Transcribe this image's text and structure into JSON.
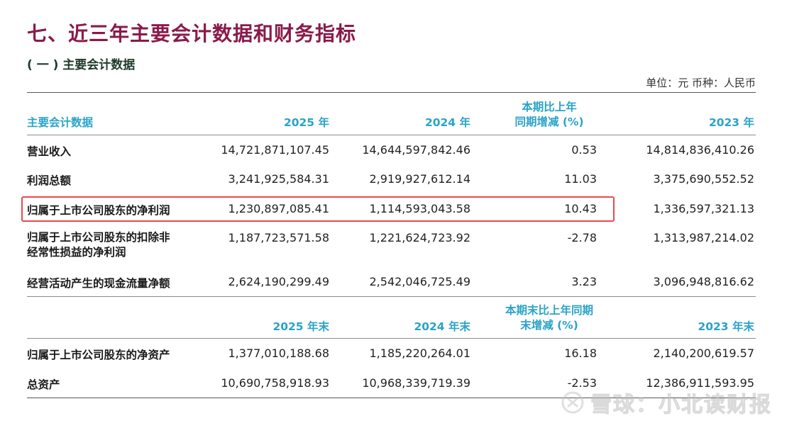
{
  "title": "七、近三年主要会计数据和财务指标",
  "subtitle": "( 一 ) 主要会计数据",
  "unit_note": "单位：元  币种：人民币",
  "table1": {
    "headers": {
      "label": "主要会计数据",
      "y2025": "2025 年",
      "y2024": "2024 年",
      "change_line1": "本期比上年",
      "change_line2": "同期增减 (%)",
      "y2023": "2023 年"
    },
    "rows": [
      {
        "label": "营业收入",
        "y2025": "14,721,871,107.45",
        "y2024": "14,644,597,842.46",
        "change": "0.53",
        "y2023": "14,814,836,410.26"
      },
      {
        "label": "利润总额",
        "y2025": "3,241,925,584.31",
        "y2024": "2,919,927,612.14",
        "change": "11.03",
        "y2023": "3,375,690,552.52"
      },
      {
        "label": "归属于上市公司股东的净利润",
        "y2025": "1,230,897,085.41",
        "y2024": "1,114,593,043.58",
        "change": "10.43",
        "y2023": "1,336,597,321.13"
      },
      {
        "label_line1": "归属于上市公司股东的扣除非",
        "label_line2": "经常性损益的净利润",
        "y2025": "1,187,723,571.58",
        "y2024": "1,221,624,723.92",
        "change": "-2.78",
        "y2023": "1,313,987,214.02"
      },
      {
        "label": "经营活动产生的现金流量净额",
        "y2025": "2,624,190,299.49",
        "y2024": "2,542,046,725.49",
        "change": "3.23",
        "y2023": "3,096,948,816.62"
      }
    ]
  },
  "table2": {
    "headers": {
      "y2025": "2025 年末",
      "y2024": "2024 年末",
      "change_line1": "本期末比上年同期",
      "change_line2": "末增减 (%)",
      "y2023": "2023 年末"
    },
    "rows": [
      {
        "label": "归属于上市公司股东的净资产",
        "y2025": "1,377,010,188.68",
        "y2024": "1,185,220,264.01",
        "change": "16.18",
        "y2023": "2,140,200,619.57"
      },
      {
        "label": "总资产",
        "y2025": "10,690,758,918.93",
        "y2024": "10,968,339,719.39",
        "change": "-2.53",
        "y2023": "12,386,911,593.95"
      }
    ]
  },
  "watermark": "雪球：小北读财报",
  "colors": {
    "title": "#8a1a4a",
    "header": "#2aa3c8",
    "highlight_border": "#e8494f"
  }
}
